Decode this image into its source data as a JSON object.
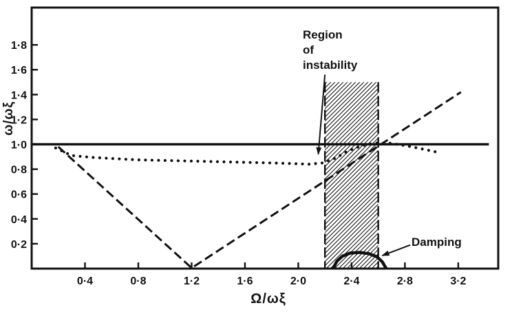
{
  "figure": {
    "background": "#ffffff",
    "ink": "#111111"
  },
  "chart_data": {
    "type": "line",
    "title": "",
    "xlabel": "Ω/ωξ",
    "ylabel": "ω/ωξ",
    "xlim": [
      0,
      3.5
    ],
    "ylim": [
      0,
      2.1
    ],
    "grid": false,
    "legend": "none",
    "x_ticks": {
      "values": [
        0.4,
        0.8,
        1.2,
        1.6,
        2.0,
        2.4,
        2.8,
        3.2
      ],
      "labels": [
        "0·4",
        "0·8",
        "1·2",
        "1·6",
        "2·0",
        "2·4",
        "2·8",
        "3·2"
      ]
    },
    "y_ticks": {
      "values": [
        0.2,
        0.4,
        0.6,
        0.8,
        1.0,
        1.2,
        1.4,
        1.6,
        1.8
      ],
      "labels": [
        "0·2",
        "0·4",
        "0·6",
        "0·8",
        "1·0",
        "1·2",
        "1·4",
        "1·6",
        "1·8"
      ]
    },
    "series": [
      {
        "name": "natural-frequency-line",
        "style": "solid",
        "width": 3.5,
        "x": [
          0,
          3.43
        ],
        "y": [
          1.0,
          1.0
        ]
      },
      {
        "name": "whirl-speed-line",
        "style": "dashed",
        "width": 3,
        "x": [
          0.2,
          1.2,
          3.22
        ],
        "y": [
          0.98,
          0.005,
          1.42
        ]
      },
      {
        "name": "response-frequency-curve",
        "style": "dotted",
        "width": 4.2,
        "x": [
          0.18,
          0.3,
          0.45,
          0.62,
          0.8,
          1.0,
          1.2,
          1.4,
          1.6,
          1.8,
          1.95,
          2.08,
          2.18,
          2.28,
          2.38,
          2.48,
          2.58,
          2.68,
          2.8,
          2.92,
          3.05
        ],
        "y": [
          0.97,
          0.91,
          0.895,
          0.885,
          0.875,
          0.87,
          0.865,
          0.86,
          0.855,
          0.85,
          0.845,
          0.84,
          0.85,
          0.89,
          0.95,
          0.99,
          1.01,
          1.01,
          0.99,
          0.965,
          0.935
        ]
      },
      {
        "name": "damping-curve",
        "style": "solid",
        "width": 4.5,
        "x": [
          2.26,
          2.29,
          2.33,
          2.39,
          2.46,
          2.53,
          2.59,
          2.63,
          2.66
        ],
        "y": [
          0.0,
          0.06,
          0.1,
          0.125,
          0.13,
          0.12,
          0.095,
          0.055,
          0.0
        ]
      }
    ],
    "instability_band": {
      "x_start": 2.2,
      "x_end": 2.6,
      "y_top": 1.5
    },
    "annotations": [
      {
        "name": "region-of-instability",
        "text": "Region\nof\ninstability",
        "arrow": {
          "from": [
            2.2,
            1.56
          ],
          "to": [
            2.15,
            0.92
          ]
        }
      },
      {
        "name": "damping",
        "text": "Damping",
        "arrow": {
          "from": [
            2.84,
            0.19
          ],
          "to": [
            2.63,
            0.105
          ]
        }
      }
    ]
  }
}
